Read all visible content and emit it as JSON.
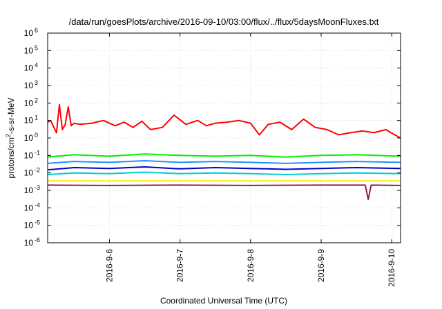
{
  "chart_data": {
    "type": "line",
    "title": "/data/run/goesPlots/archive/2016-09-10/03:00/flux/../flux/5daysMoonFluxes.txt",
    "xlabel": "Coordinated Universal Time (UTC)",
    "ylabel_parts": [
      "protons/cm",
      "2",
      "-s-sr-MeV"
    ],
    "y_scale": "log",
    "ylim": [
      1e-06,
      1000000.0
    ],
    "y_ticks": [
      {
        "base": "10",
        "exp": "-6"
      },
      {
        "base": "10",
        "exp": "-5"
      },
      {
        "base": "10",
        "exp": "-4"
      },
      {
        "base": "10",
        "exp": "-3"
      },
      {
        "base": "10",
        "exp": "-2"
      },
      {
        "base": "10",
        "exp": "-1"
      },
      {
        "base": "10",
        "exp": "0"
      },
      {
        "base": "10",
        "exp": "1"
      },
      {
        "base": "10",
        "exp": "2"
      },
      {
        "base": "10",
        "exp": "3"
      },
      {
        "base": "10",
        "exp": "4"
      },
      {
        "base": "10",
        "exp": "5"
      },
      {
        "base": "10",
        "exp": "6"
      }
    ],
    "xlim": [
      "2016-09-05T03:00",
      "2016-09-10T03:00"
    ],
    "x_ticks": [
      "2016-9-6",
      "2016-9-7",
      "2016-9-8",
      "2016-9-9",
      "2016-9-10"
    ],
    "x_tick_values": [
      "2016-09-06T00:00",
      "2016-09-07T00:00",
      "2016-09-08T00:00",
      "2016-09-09T00:00",
      "2016-09-10T00:00"
    ],
    "grid": true,
    "series": [
      {
        "color": "#ff0000",
        "x": [
          "2016-09-05T03:00",
          "2016-09-05T04:00",
          "2016-09-05T06:00",
          "2016-09-05T07:00",
          "2016-09-05T08:00",
          "2016-09-05T09:00",
          "2016-09-05T10:00",
          "2016-09-05T11:00",
          "2016-09-05T12:00",
          "2016-09-05T14:00",
          "2016-09-05T18:00",
          "2016-09-05T22:00",
          "2016-09-06T02:00",
          "2016-09-06T05:00",
          "2016-09-06T08:00",
          "2016-09-06T11:00",
          "2016-09-06T14:00",
          "2016-09-06T18:00",
          "2016-09-06T22:00",
          "2016-09-07T02:00",
          "2016-09-07T06:00",
          "2016-09-07T09:00",
          "2016-09-07T12:00",
          "2016-09-07T16:00",
          "2016-09-07T20:00",
          "2016-09-08T00:00",
          "2016-09-08T03:00",
          "2016-09-08T06:00",
          "2016-09-08T10:00",
          "2016-09-08T14:00",
          "2016-09-08T18:00",
          "2016-09-08T22:00",
          "2016-09-09T02:00",
          "2016-09-09T06:00",
          "2016-09-09T10:00",
          "2016-09-09T14:00",
          "2016-09-09T18:00",
          "2016-09-09T22:00",
          "2016-09-10T01:00",
          "2016-09-10T03:00"
        ],
        "y": [
          8,
          10,
          2,
          80,
          3,
          6,
          60,
          5,
          7,
          6,
          7,
          10,
          5,
          8,
          4,
          9,
          3,
          4,
          20,
          6,
          10,
          5,
          7,
          8,
          10,
          7,
          1.5,
          6,
          8,
          3,
          12,
          4,
          3,
          1.5,
          2,
          2.5,
          2,
          3,
          1.5,
          1
        ]
      },
      {
        "color": "#00ee00",
        "x": [
          "2016-09-05T03:00",
          "2016-09-05T12:00",
          "2016-09-06T00:00",
          "2016-09-06T12:00",
          "2016-09-07T00:00",
          "2016-09-07T12:00",
          "2016-09-08T00:00",
          "2016-09-08T12:00",
          "2016-09-09T00:00",
          "2016-09-09T12:00",
          "2016-09-10T03:00"
        ],
        "y": [
          0.08,
          0.11,
          0.09,
          0.12,
          0.1,
          0.09,
          0.1,
          0.08,
          0.1,
          0.11,
          0.09
        ]
      },
      {
        "color": "#1e90ff",
        "x": [
          "2016-09-05T03:00",
          "2016-09-05T12:00",
          "2016-09-06T00:00",
          "2016-09-06T12:00",
          "2016-09-07T00:00",
          "2016-09-07T12:00",
          "2016-09-08T00:00",
          "2016-09-08T12:00",
          "2016-09-09T00:00",
          "2016-09-09T12:00",
          "2016-09-10T03:00"
        ],
        "y": [
          0.035,
          0.045,
          0.04,
          0.05,
          0.04,
          0.045,
          0.04,
          0.035,
          0.04,
          0.045,
          0.04
        ]
      },
      {
        "color": "#0000cd",
        "x": [
          "2016-09-05T03:00",
          "2016-09-05T12:00",
          "2016-09-06T00:00",
          "2016-09-06T12:00",
          "2016-09-07T00:00",
          "2016-09-07T12:00",
          "2016-09-08T00:00",
          "2016-09-08T12:00",
          "2016-09-09T00:00",
          "2016-09-09T12:00",
          "2016-09-10T03:00"
        ],
        "y": [
          0.015,
          0.02,
          0.018,
          0.022,
          0.017,
          0.02,
          0.018,
          0.016,
          0.018,
          0.02,
          0.018
        ]
      },
      {
        "color": "#00ced1",
        "x": [
          "2016-09-05T03:00",
          "2016-09-05T12:00",
          "2016-09-06T00:00",
          "2016-09-06T12:00",
          "2016-09-07T00:00",
          "2016-09-07T12:00",
          "2016-09-08T00:00",
          "2016-09-08T12:00",
          "2016-09-09T00:00",
          "2016-09-09T12:00",
          "2016-09-10T03:00"
        ],
        "y": [
          0.008,
          0.01,
          0.009,
          0.011,
          0.009,
          0.01,
          0.009,
          0.008,
          0.009,
          0.01,
          0.009
        ]
      },
      {
        "color": "#ffee00",
        "x": [
          "2016-09-05T03:00",
          "2016-09-06T03:00",
          "2016-09-07T03:00",
          "2016-09-08T03:00",
          "2016-09-09T03:00",
          "2016-09-10T03:00"
        ],
        "y": [
          0.0035,
          0.0035,
          0.0035,
          0.0035,
          0.0035,
          0.0035
        ]
      },
      {
        "color": "#8b2252",
        "x": [
          "2016-09-05T03:00",
          "2016-09-06T00:00",
          "2016-09-07T00:00",
          "2016-09-08T00:00",
          "2016-09-09T00:00",
          "2016-09-09T15:00",
          "2016-09-09T16:00",
          "2016-09-09T17:00",
          "2016-09-10T03:00"
        ],
        "y": [
          0.002,
          0.0019,
          0.002,
          0.0019,
          0.002,
          0.002,
          0.0003,
          0.002,
          0.0019
        ]
      }
    ]
  }
}
